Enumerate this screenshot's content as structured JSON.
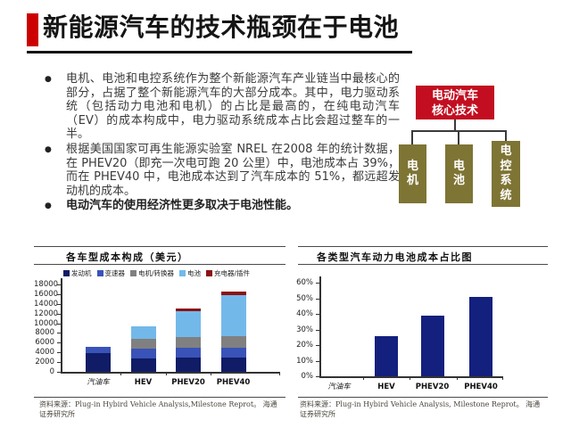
{
  "slide": {
    "title": "新能源汽车的技术瓶颈在于电池",
    "accent_color": "#cc0000",
    "bullet_glyph": "●"
  },
  "bullets": [
    {
      "text": "电机、电池和电控系统作为整个新能源汽车产业链当中最核心的部分，占据了整个新能源汽车的大部分成本。其中，电力驱动系统（包括动力电池和电机）的占比是最高的，在纯电动汽车（EV）的成本构成中，电力驱动系统成本占比会超过整车的一半。"
    },
    {
      "text": "根据美国国家可再生能源实验室 NREL 在2008 年的统计数据，在 PHEV20（即充一次电可跑 20 公里）中，电池成本占 39%，而在 PHEV40 中，电池成本达到了汽车成本的 51%，都远超发动机的成本。"
    },
    {
      "text": "电动汽车的使用经济性更多取决于电池性能。"
    }
  ],
  "diagram": {
    "root_label": "电动汽车核心技术",
    "root_color": "#c20e20",
    "child_color": "#7e7434",
    "children": [
      "电机",
      "电池",
      "电控系统"
    ]
  },
  "chart_data": [
    {
      "type": "bar",
      "stacked": true,
      "title": "各车型成本构成（美元）",
      "categories": [
        "汽油车",
        "HEV",
        "PHEV20",
        "PHEV40"
      ],
      "series": [
        {
          "name": "发动机",
          "color": "#101c66",
          "values": [
            3900,
            2700,
            2900,
            3000
          ]
        },
        {
          "name": "变速器",
          "color": "#3953b8",
          "values": [
            1200,
            2100,
            2000,
            1900
          ]
        },
        {
          "name": "电机/转换器",
          "color": "#808080",
          "values": [
            0,
            2000,
            2200,
            2400
          ]
        },
        {
          "name": "电池",
          "color": "#72b9ea",
          "values": [
            0,
            2600,
            5400,
            8500
          ]
        },
        {
          "name": "充电器/插件",
          "color": "#8c1214",
          "values": [
            0,
            0,
            600,
            800
          ]
        }
      ],
      "ylim": [
        0,
        18000
      ],
      "ytick_step": 2000,
      "ytick_suffix": "",
      "legend_position": "top",
      "grid": false,
      "source": "资料来源：Plug-in Hybird Vehicle Analysis,Milestone Reprot。 海通证券研究所"
    },
    {
      "type": "bar",
      "stacked": false,
      "title": "各类型汽车动力电池成本占比图",
      "categories": [
        "汽油车",
        "HEV",
        "PHEV20",
        "PHEV40"
      ],
      "values": [
        0,
        26,
        39,
        51
      ],
      "bar_color": "#14207d",
      "ylim": [
        0,
        60
      ],
      "ytick_step": 10,
      "ytick_suffix": "%",
      "grid": false,
      "source": "资料来源：Plug-in Hybird Vehicle Analysis, Milestone Reprot。 海通证券研究所"
    }
  ]
}
